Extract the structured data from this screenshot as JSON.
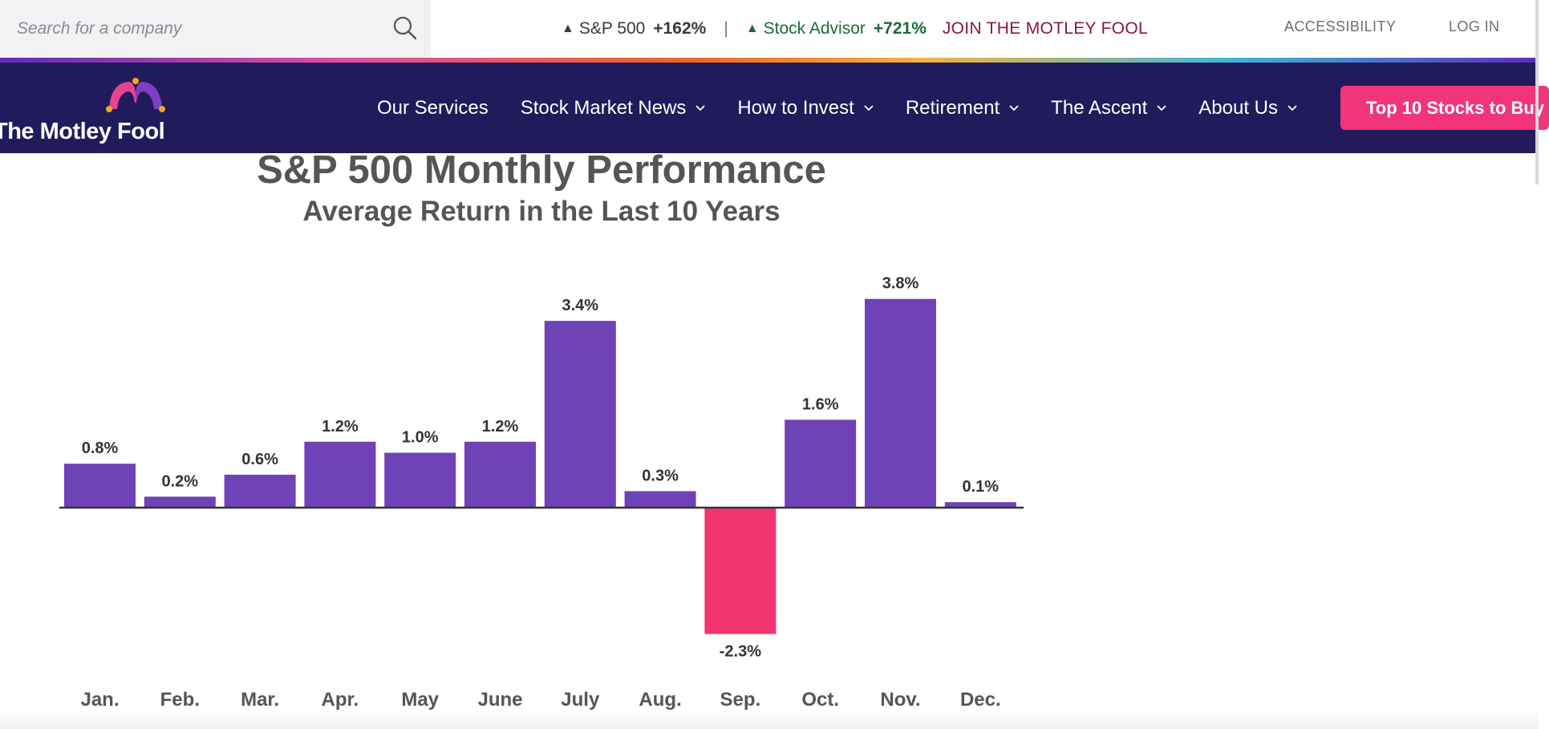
{
  "search": {
    "placeholder": "Search for a company"
  },
  "ticker": {
    "sp500_label": "S&P 500",
    "sp500_value": "+162%",
    "separator": "|",
    "advisor_label": "Stock Advisor",
    "advisor_value": "+721%",
    "join_label": "JOIN THE MOTLEY FOOL"
  },
  "utility": {
    "accessibility": "ACCESSIBILITY",
    "login": "LOG IN"
  },
  "brand": {
    "name": "The Motley Fool"
  },
  "nav": {
    "items": [
      {
        "label": "Our Services",
        "has_dropdown": false
      },
      {
        "label": "Stock Market News",
        "has_dropdown": true
      },
      {
        "label": "How to Invest",
        "has_dropdown": true
      },
      {
        "label": "Retirement",
        "has_dropdown": true
      },
      {
        "label": "The Ascent",
        "has_dropdown": true
      },
      {
        "label": "About Us",
        "has_dropdown": true
      }
    ],
    "cta": "Top 10 Stocks to Buy"
  },
  "colors": {
    "nav_bg": "#211b5b",
    "cta_bg": "#f2357b",
    "positive_bar": "#6f42b8",
    "negative_bar": "#f2346f",
    "join_link": "#8a1838",
    "advisor_green": "#1b6b3a"
  },
  "icons": {
    "search": "search-icon",
    "chevron": "chevron-down-icon",
    "arrow_up": "triangle-up-icon",
    "logo": "jester-cap-icon"
  },
  "chart_data": {
    "type": "bar",
    "title": "S&P 500 Monthly Performance",
    "subtitle": "Average Return in the Last 10 Years",
    "categories": [
      "Jan.",
      "Feb.",
      "Mar.",
      "Apr.",
      "May",
      "June",
      "July",
      "Aug.",
      "Sep.",
      "Oct.",
      "Nov.",
      "Dec."
    ],
    "values": [
      0.8,
      0.2,
      0.6,
      1.2,
      1.0,
      1.2,
      3.4,
      0.3,
      -2.3,
      1.6,
      3.8,
      0.1
    ],
    "labels": [
      "0.8%",
      "0.2%",
      "0.6%",
      "1.2%",
      "1.0%",
      "1.2%",
      "3.4%",
      "0.3%",
      "-2.3%",
      "1.6%",
      "3.8%",
      "0.1%"
    ],
    "unit": "%",
    "ylim": [
      -2.3,
      3.8
    ],
    "grid": false,
    "legend": "none"
  }
}
